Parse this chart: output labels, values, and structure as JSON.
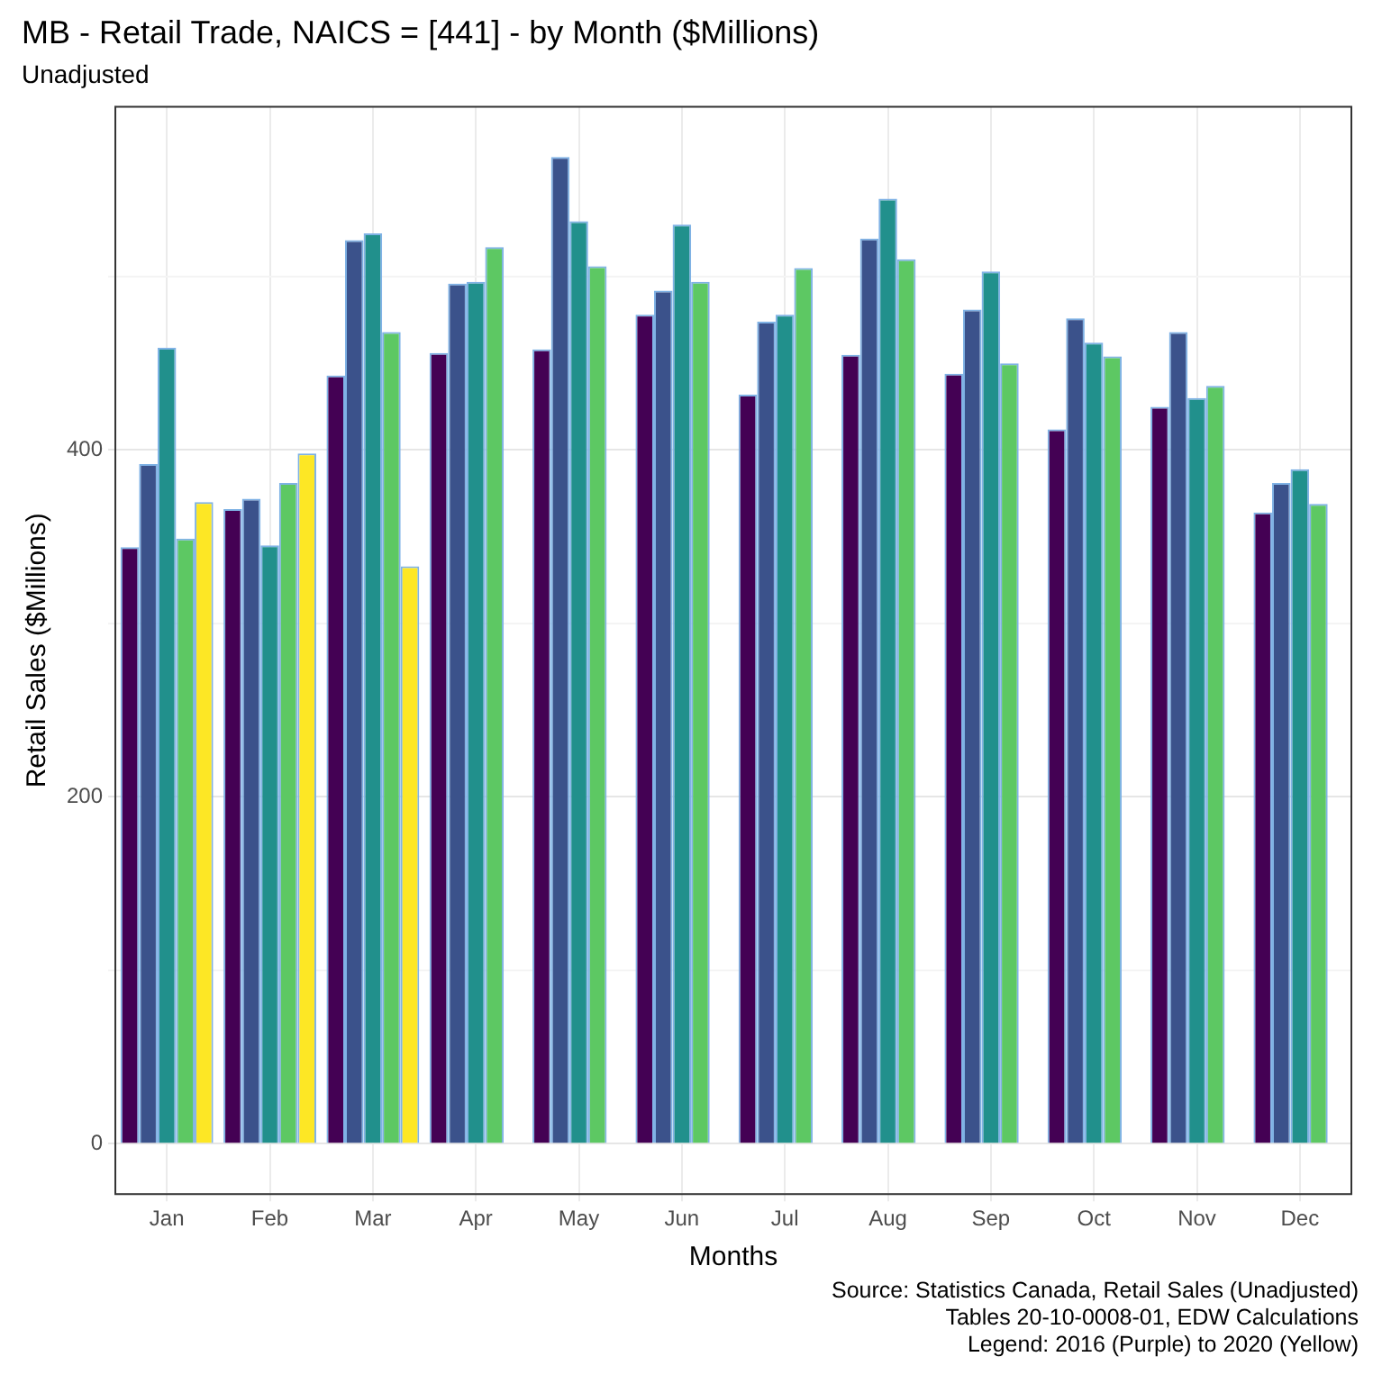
{
  "chart_data": {
    "type": "bar",
    "title": "MB - Retail Trade, NAICS = [441] - by Month ($Millions)",
    "subtitle": "Unadjusted",
    "xlabel": "Months",
    "ylabel": "Retail Sales ($Millions)",
    "categories": [
      "Jan",
      "Feb",
      "Mar",
      "Apr",
      "May",
      "Jun",
      "Jul",
      "Aug",
      "Sep",
      "Oct",
      "Nov",
      "Dec"
    ],
    "series": [
      {
        "color": "#440154",
        "values": [
          344,
          366,
          443,
          456,
          458,
          478,
          432,
          455,
          444,
          412,
          425,
          364
        ]
      },
      {
        "color": "#3b528b",
        "values": [
          392,
          372,
          521,
          496,
          569,
          492,
          474,
          522,
          481,
          476,
          468,
          381
        ]
      },
      {
        "color": "#21908c",
        "values": [
          459,
          345,
          525,
          497,
          532,
          530,
          478,
          545,
          503,
          462,
          430,
          389
        ]
      },
      {
        "color": "#5dc863",
        "values": [
          349,
          381,
          468,
          517,
          506,
          497,
          505,
          510,
          450,
          454,
          437,
          369
        ]
      },
      {
        "color": "#fde725",
        "values": [
          370,
          398,
          333,
          null,
          null,
          null,
          null,
          null,
          null,
          null,
          null,
          null
        ]
      }
    ],
    "ylim": [
      -29,
      598
    ],
    "yticks": [
      0,
      {
        "value": 100,
        "label": null
      },
      200,
      {
        "value": 300,
        "label": null
      },
      400,
      {
        "value": 500,
        "label": null
      }
    ],
    "grid": true,
    "annotations": [
      "Source: Statistics Canada, Retail Sales (Unadjusted)",
      "Tables 20-10-0008-01, EDW Calculations",
      "Legend: 2016 (Purple) to 2020 (Yellow)"
    ]
  }
}
